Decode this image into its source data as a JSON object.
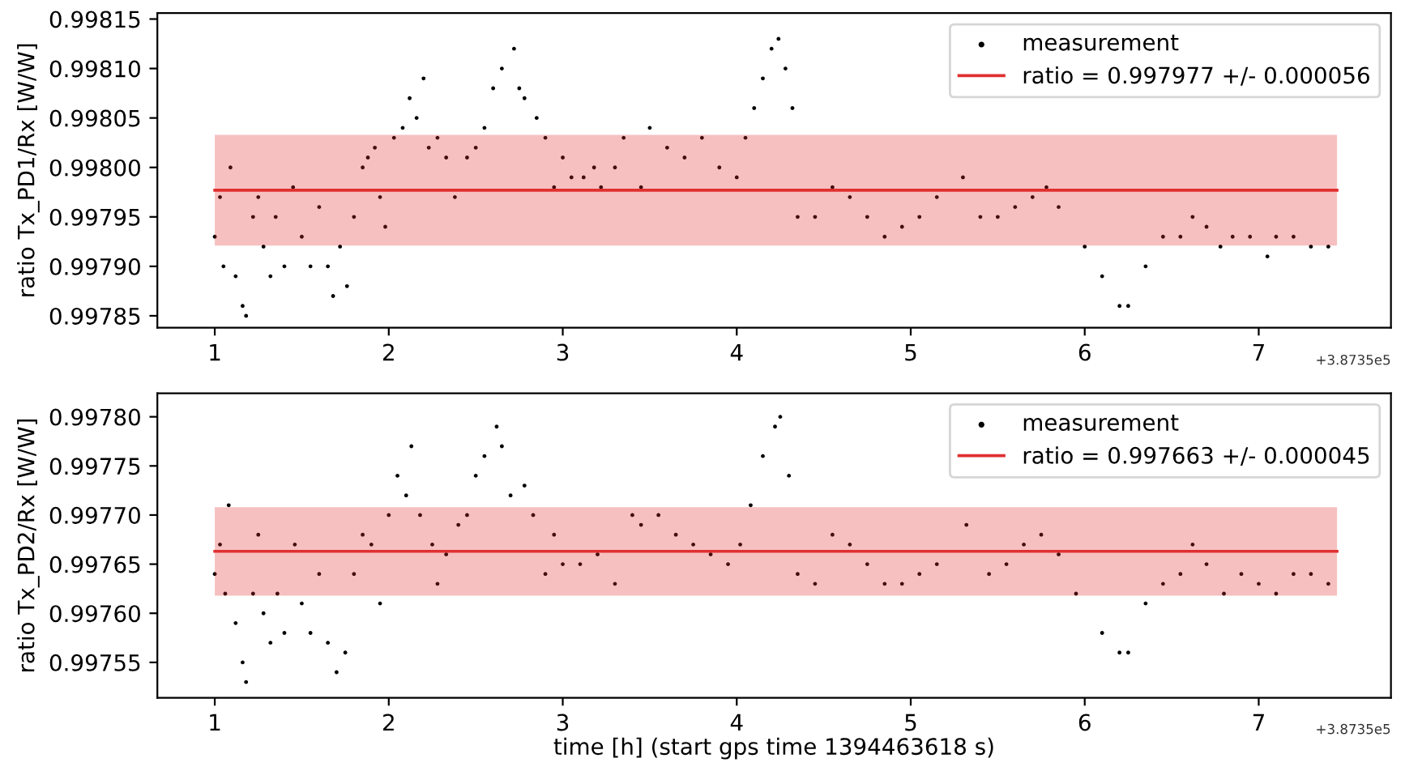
{
  "chart_data": [
    {
      "type": "scatter",
      "ylabel": "ratio Tx_PD1/Rx [W/W]",
      "annotations": [
        "+3.8735e5"
      ],
      "legend": "top right",
      "grid": false,
      "xlim": [
        0.67,
        7.76
      ],
      "xticks": [
        1,
        2,
        3,
        4,
        5,
        6,
        7
      ],
      "ylim": [
        0.997838,
        0.998156
      ],
      "yticks": [
        {
          "value": 0.99785,
          "label": "0.99785"
        },
        {
          "value": 0.9979,
          "label": "0.99790"
        },
        {
          "value": 0.99795,
          "label": "0.99795"
        },
        {
          "value": 0.998,
          "label": "0.99800"
        },
        {
          "value": 0.99805,
          "label": "0.99805"
        },
        {
          "value": 0.9981,
          "label": "0.99810"
        },
        {
          "value": 0.99815,
          "label": "0.99815"
        }
      ],
      "series": [
        {
          "name": "measurement",
          "marker": "circle",
          "color": "#000000",
          "x": [
            1.0,
            1.03,
            1.05,
            1.09,
            1.12,
            1.16,
            1.18,
            1.22,
            1.25,
            1.28,
            1.32,
            1.35,
            1.4,
            1.45,
            1.5,
            1.55,
            1.6,
            1.65,
            1.68,
            1.72,
            1.76,
            1.8,
            1.85,
            1.88,
            1.92,
            1.95,
            1.98,
            2.03,
            2.08,
            2.12,
            2.16,
            2.2,
            2.23,
            2.28,
            2.33,
            2.38,
            2.45,
            2.5,
            2.55,
            2.6,
            2.65,
            2.72,
            2.75,
            2.78,
            2.85,
            2.9,
            2.95,
            3.0,
            3.05,
            3.12,
            3.18,
            3.22,
            3.3,
            3.35,
            3.45,
            3.5,
            3.6,
            3.7,
            3.8,
            3.9,
            4.0,
            4.05,
            4.1,
            4.15,
            4.2,
            4.24,
            4.28,
            4.32,
            4.35,
            4.45,
            4.55,
            4.65,
            4.75,
            4.85,
            4.95,
            5.05,
            5.15,
            5.3,
            5.4,
            5.5,
            5.6,
            5.7,
            5.78,
            5.85,
            6.0,
            6.1,
            6.2,
            6.25,
            6.35,
            6.45,
            6.55,
            6.62,
            6.7,
            6.78,
            6.85,
            6.95,
            7.05,
            7.1,
            7.2,
            7.3,
            7.4
          ],
          "values": [
            0.99793,
            0.99797,
            0.9979,
            0.998,
            0.99789,
            0.99786,
            0.99785,
            0.99795,
            0.99797,
            0.99792,
            0.99789,
            0.99795,
            0.9979,
            0.99798,
            0.99793,
            0.9979,
            0.99796,
            0.9979,
            0.99787,
            0.99792,
            0.99788,
            0.99795,
            0.998,
            0.99801,
            0.99802,
            0.99797,
            0.99794,
            0.99803,
            0.99804,
            0.99807,
            0.99805,
            0.99809,
            0.99802,
            0.99803,
            0.99801,
            0.99797,
            0.99801,
            0.99802,
            0.99804,
            0.99808,
            0.9981,
            0.99812,
            0.99808,
            0.99807,
            0.99805,
            0.99803,
            0.99798,
            0.99801,
            0.99799,
            0.99799,
            0.998,
            0.99798,
            0.998,
            0.99803,
            0.99798,
            0.99804,
            0.99802,
            0.99801,
            0.99803,
            0.998,
            0.99799,
            0.99803,
            0.99806,
            0.99809,
            0.99812,
            0.99813,
            0.9981,
            0.99806,
            0.99795,
            0.99795,
            0.99798,
            0.99797,
            0.99795,
            0.99793,
            0.99794,
            0.99795,
            0.99797,
            0.99799,
            0.99795,
            0.99795,
            0.99796,
            0.99797,
            0.99798,
            0.99796,
            0.99792,
            0.99789,
            0.99786,
            0.99786,
            0.9979,
            0.99793,
            0.99793,
            0.99795,
            0.99794,
            0.99792,
            0.99793,
            0.99793,
            0.99791,
            0.99793,
            0.99793,
            0.99792,
            0.99792
          ]
        },
        {
          "name": "ratio = 0.997977 +/- 0.000056",
          "type": "line",
          "color": "#e03030",
          "x": [
            1.0,
            7.45
          ],
          "values": [
            0.997977,
            0.997977
          ],
          "lower": [
            0.997921,
            0.997921
          ],
          "upper": [
            0.998033,
            0.998033
          ]
        }
      ]
    },
    {
      "type": "scatter",
      "ylabel": "ratio Tx_PD2/Rx [W/W]",
      "xlabel": "time [h] (start gps time 1394463618 s)",
      "annotations": [
        "+3.8735e5"
      ],
      "legend": "top right",
      "grid": false,
      "xlim": [
        0.67,
        7.76
      ],
      "xticks": [
        1,
        2,
        3,
        4,
        5,
        6,
        7
      ],
      "ylim": [
        0.997514,
        0.997824
      ],
      "yticks": [
        {
          "value": 0.99755,
          "label": "0.99755"
        },
        {
          "value": 0.9976,
          "label": "0.99760"
        },
        {
          "value": 0.99765,
          "label": "0.99765"
        },
        {
          "value": 0.9977,
          "label": "0.99770"
        },
        {
          "value": 0.99775,
          "label": "0.99775"
        },
        {
          "value": 0.9978,
          "label": "0.99780"
        }
      ],
      "series": [
        {
          "name": "measurement",
          "marker": "circle",
          "color": "#000000",
          "x": [
            1.0,
            1.03,
            1.06,
            1.08,
            1.12,
            1.16,
            1.18,
            1.22,
            1.25,
            1.28,
            1.32,
            1.36,
            1.4,
            1.46,
            1.5,
            1.55,
            1.6,
            1.65,
            1.7,
            1.75,
            1.8,
            1.85,
            1.9,
            1.95,
            2.0,
            2.05,
            2.1,
            2.13,
            2.18,
            2.25,
            2.28,
            2.33,
            2.4,
            2.45,
            2.5,
            2.55,
            2.62,
            2.65,
            2.7,
            2.78,
            2.83,
            2.9,
            2.95,
            3.0,
            3.1,
            3.2,
            3.3,
            3.4,
            3.45,
            3.55,
            3.65,
            3.75,
            3.85,
            3.95,
            4.02,
            4.08,
            4.15,
            4.22,
            4.25,
            4.3,
            4.35,
            4.45,
            4.55,
            4.65,
            4.75,
            4.85,
            4.95,
            5.05,
            5.15,
            5.32,
            5.45,
            5.55,
            5.65,
            5.75,
            5.85,
            5.95,
            6.1,
            6.2,
            6.25,
            6.35,
            6.45,
            6.55,
            6.62,
            6.7,
            6.8,
            6.9,
            7.0,
            7.1,
            7.2,
            7.3,
            7.4
          ],
          "values": [
            0.99764,
            0.99767,
            0.99762,
            0.99771,
            0.99759,
            0.99755,
            0.99753,
            0.99762,
            0.99768,
            0.9976,
            0.99757,
            0.99762,
            0.99758,
            0.99767,
            0.99761,
            0.99758,
            0.99764,
            0.99757,
            0.99754,
            0.99756,
            0.99764,
            0.99768,
            0.99767,
            0.99761,
            0.9977,
            0.99774,
            0.99772,
            0.99777,
            0.9977,
            0.99767,
            0.99763,
            0.99766,
            0.99769,
            0.9977,
            0.99774,
            0.99776,
            0.99779,
            0.99777,
            0.99772,
            0.99773,
            0.9977,
            0.99764,
            0.99768,
            0.99765,
            0.99765,
            0.99766,
            0.99763,
            0.9977,
            0.99769,
            0.9977,
            0.99768,
            0.99767,
            0.99766,
            0.99765,
            0.99767,
            0.99771,
            0.99776,
            0.99779,
            0.9978,
            0.99774,
            0.99764,
            0.99763,
            0.99768,
            0.99767,
            0.99765,
            0.99763,
            0.99763,
            0.99764,
            0.99765,
            0.99769,
            0.99764,
            0.99765,
            0.99767,
            0.99768,
            0.99766,
            0.99762,
            0.99758,
            0.99756,
            0.99756,
            0.99761,
            0.99763,
            0.99764,
            0.99767,
            0.99765,
            0.99762,
            0.99764,
            0.99763,
            0.99762,
            0.99764,
            0.99764,
            0.99763
          ]
        },
        {
          "name": "ratio = 0.997663 +/- 0.000045",
          "type": "line",
          "color": "#e03030",
          "x": [
            1.0,
            7.45
          ],
          "values": [
            0.997663,
            0.997663
          ],
          "lower": [
            0.997618,
            0.997618
          ],
          "upper": [
            0.997708,
            0.997708
          ]
        }
      ]
    }
  ]
}
